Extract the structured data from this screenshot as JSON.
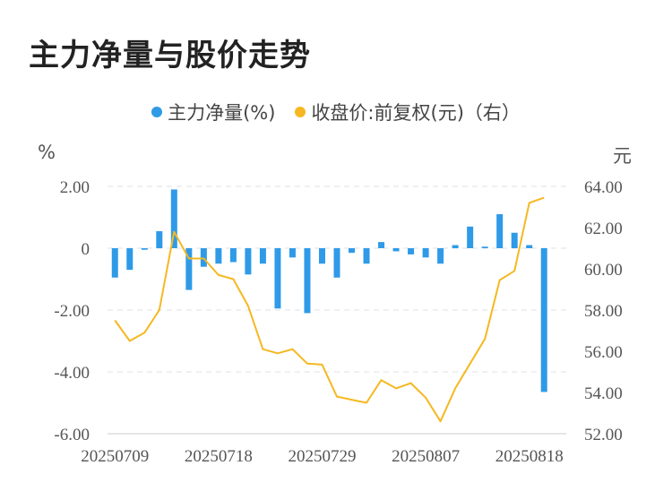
{
  "title": "主力净量与股价走势",
  "legend": {
    "items": [
      {
        "label": "主力净量(%)",
        "color": "#2f9ae8"
      },
      {
        "label": "收盘价:前复权(元)（右）",
        "color": "#f5b821"
      }
    ]
  },
  "chart_data": {
    "type": "bar",
    "left_unit": "%",
    "right_unit": "元",
    "x": [
      "20250709",
      "20250710",
      "20250711",
      "20250714",
      "20250715",
      "20250716",
      "20250717",
      "20250718",
      "20250721",
      "20250722",
      "20250723",
      "20250724",
      "20250725",
      "20250728",
      "20250729",
      "20250730",
      "20250731",
      "20250801",
      "20250804",
      "20250805",
      "20250806",
      "20250807",
      "20250808",
      "20250811",
      "20250812",
      "20250813",
      "20250814",
      "20250815",
      "20250818",
      "20250819",
      "20250820"
    ],
    "x_tick_labels": [
      "20250709",
      "20250718",
      "20250729",
      "20250807",
      "20250818"
    ],
    "y_left": {
      "min": -6,
      "max": 2,
      "ticks": [
        2,
        0,
        -2,
        -4,
        -6
      ],
      "tick_labels": [
        "2.00",
        "0",
        "-2.00",
        "-4.00",
        "-6.00"
      ]
    },
    "y_right": {
      "min": 52,
      "max": 64,
      "ticks": [
        64,
        62,
        60,
        58,
        56,
        54,
        52
      ],
      "tick_labels": [
        "64.00",
        "62.00",
        "60.00",
        "58.00",
        "56.00",
        "54.00",
        "52.00"
      ]
    },
    "series": [
      {
        "name": "主力净量(%)",
        "type": "bar",
        "axis": "left",
        "color": "#2f9ae8",
        "values": [
          -0.95,
          -0.7,
          -0.05,
          0.55,
          1.9,
          -1.35,
          -0.6,
          -0.5,
          -0.45,
          -0.85,
          -0.5,
          -1.95,
          -0.3,
          -2.1,
          -0.5,
          -0.95,
          -0.15,
          -0.5,
          0.2,
          -0.1,
          -0.2,
          -0.3,
          -0.5,
          0.1,
          0.7,
          0.05,
          1.1,
          0.5,
          0.1,
          -4.65,
          null
        ]
      },
      {
        "name": "收盘价:前复权(元)（右）",
        "type": "line",
        "axis": "right",
        "color": "#f5b821",
        "values": [
          57.5,
          56.5,
          56.9,
          58.0,
          61.8,
          60.5,
          60.5,
          59.7,
          59.5,
          58.2,
          56.1,
          55.9,
          56.1,
          55.4,
          55.35,
          53.8,
          53.65,
          53.5,
          54.6,
          54.2,
          54.45,
          53.75,
          52.6,
          54.2,
          55.4,
          56.6,
          59.45,
          59.9,
          63.2,
          63.45,
          null
        ]
      }
    ],
    "grid": true
  }
}
